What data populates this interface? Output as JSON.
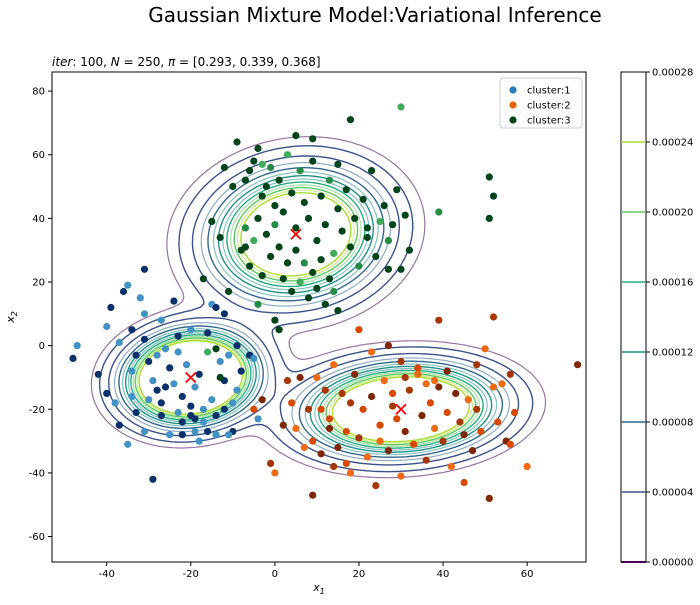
{
  "figure": {
    "suptitle": "Gaussian Mixture Model:Variational Inference"
  },
  "chart_data": {
    "type": "scatter",
    "title": "iter: 100, N = 250, π = [0.293, 0.339, 0.368]",
    "title_parts": {
      "iter_label": "iter",
      "iter_value": "100",
      "n_label": "N",
      "n_value": "250",
      "pi_label": "π",
      "pi_value": "[0.293, 0.339, 0.368]"
    },
    "xlabel_sym": "x",
    "xlabel_sub": "1",
    "ylabel_sym": "x",
    "ylabel_sub": "2",
    "xlim": [
      -53,
      74
    ],
    "ylim": [
      -68,
      86
    ],
    "xticks": [
      -40,
      -20,
      0,
      20,
      40,
      60
    ],
    "yticks": [
      -60,
      -40,
      -20,
      0,
      20,
      40,
      60,
      80
    ],
    "grid": false,
    "legend_position": "top-right",
    "legend": [
      {
        "label": "cluster:1",
        "color": "#2b7bba"
      },
      {
        "label": "cluster:2",
        "color": "#e66101"
      },
      {
        "label": "cluster:3",
        "color": "#00441b"
      }
    ],
    "centers": [
      {
        "x": -20,
        "y": -10
      },
      {
        "x": 5,
        "y": 35
      },
      {
        "x": 30,
        "y": -20
      }
    ],
    "components": [
      {
        "mean": [
          -20,
          -10
        ],
        "sx": 8,
        "sy": 7.5,
        "rho": 0.1,
        "weight": 0.293
      },
      {
        "mean": [
          5,
          35
        ],
        "sx": 11,
        "sy": 11,
        "rho": 0.1,
        "weight": 0.368
      },
      {
        "mean": [
          30,
          -20
        ],
        "sx": 12,
        "sy": 7.5,
        "rho": 0.1,
        "weight": 0.339
      }
    ],
    "colorbar": {
      "ticks": [
        "0.00000",
        "0.00004",
        "0.00008",
        "0.00012",
        "0.00016",
        "0.00020",
        "0.00024",
        "0.00028"
      ],
      "tick_values": [
        0,
        4e-05,
        8e-05,
        0.00012,
        0.00016,
        0.0002,
        0.00024,
        0.00028
      ],
      "range": [
        0,
        0.00028
      ],
      "level_colors": [
        "#440154",
        "#3b528b",
        "#31688e",
        "#21918c",
        "#27ad81",
        "#5ec962",
        "#aadc32",
        "#fde725"
      ]
    },
    "series": [
      {
        "name": "cluster:1",
        "points": [
          [
            -48,
            -4
          ],
          [
            -47,
            0
          ],
          [
            -42,
            -9
          ],
          [
            -40,
            6
          ],
          [
            -39,
            12
          ],
          [
            -37,
            1
          ],
          [
            -36,
            17
          ],
          [
            -35,
            19
          ],
          [
            -34,
            5
          ],
          [
            -34,
            -8
          ],
          [
            -33,
            -3
          ],
          [
            -32,
            15
          ],
          [
            -31,
            24
          ],
          [
            -31,
            10
          ],
          [
            -30,
            -5
          ],
          [
            -29,
            -11
          ],
          [
            -28,
            -14
          ],
          [
            -26,
            -1
          ],
          [
            -25,
            -7
          ],
          [
            -24,
            -12
          ],
          [
            -23,
            3
          ],
          [
            -23,
            -2
          ],
          [
            -22,
            -16
          ],
          [
            -21,
            -6
          ],
          [
            -20,
            -19
          ],
          [
            -19,
            -13
          ],
          [
            -18,
            -9
          ],
          [
            -17,
            -24
          ],
          [
            -16,
            4
          ],
          [
            -15,
            -17
          ],
          [
            -14,
            -22
          ],
          [
            -13,
            -5
          ],
          [
            -12,
            -11
          ],
          [
            -11,
            -3
          ],
          [
            -10,
            -27
          ],
          [
            -9,
            -14
          ],
          [
            -33,
            -21
          ],
          [
            -35,
            -31
          ],
          [
            -37,
            -25
          ],
          [
            -31,
            -27
          ],
          [
            -27,
            -22
          ],
          [
            -25,
            -28
          ],
          [
            -22,
            -28
          ],
          [
            -19,
            -27
          ],
          [
            -16,
            -27
          ],
          [
            -14,
            -28
          ],
          [
            -27,
            -18
          ],
          [
            -30,
            -17
          ],
          [
            -24,
            14
          ],
          [
            -27,
            8
          ],
          [
            -22,
            -24
          ],
          [
            -18,
            -30
          ],
          [
            -12,
            -20
          ],
          [
            -17,
            -20
          ],
          [
            -29,
            -42
          ],
          [
            -34,
            -16
          ],
          [
            -12,
            10
          ],
          [
            -15,
            13
          ],
          [
            -14,
            12
          ],
          [
            -11,
            -28
          ],
          [
            -6,
            -3
          ],
          [
            -5,
            -4
          ],
          [
            -8,
            -8
          ],
          [
            -4,
            -23
          ],
          [
            -19,
            -23
          ],
          [
            -23,
            -21
          ],
          [
            -26,
            -13
          ],
          [
            -28,
            -3
          ],
          [
            -31,
            2
          ],
          [
            -38,
            -18
          ],
          [
            -40,
            -15
          ],
          [
            -20,
            5
          ],
          [
            -9,
            0
          ],
          [
            -10,
            -18
          ],
          [
            -20,
            -22
          ]
        ],
        "colors": "mixed"
      },
      {
        "name": "cluster:2",
        "points": [
          [
            -3,
            -17
          ],
          [
            -1,
            -37
          ],
          [
            -5,
            -20
          ],
          [
            0,
            -40
          ],
          [
            2,
            -25
          ],
          [
            3,
            -11
          ],
          [
            4,
            -18
          ],
          [
            5,
            -26
          ],
          [
            6,
            -10
          ],
          [
            8,
            -20
          ],
          [
            9,
            -30
          ],
          [
            10,
            -10
          ],
          [
            11,
            -34
          ],
          [
            12,
            -14
          ],
          [
            13,
            -23
          ],
          [
            14,
            -6
          ],
          [
            15,
            -32
          ],
          [
            16,
            -15
          ],
          [
            17,
            -27
          ],
          [
            18,
            -40
          ],
          [
            19,
            -9
          ],
          [
            20,
            -29
          ],
          [
            21,
            -20
          ],
          [
            22,
            -35
          ],
          [
            23,
            -16
          ],
          [
            24,
            -44
          ],
          [
            25,
            -25
          ],
          [
            26,
            -11
          ],
          [
            27,
            -33
          ],
          [
            28,
            -19
          ],
          [
            29,
            -23
          ],
          [
            30,
            -41
          ],
          [
            31,
            -27
          ],
          [
            32,
            -14
          ],
          [
            33,
            -31
          ],
          [
            34,
            -9
          ],
          [
            35,
            -22
          ],
          [
            36,
            -36
          ],
          [
            37,
            -18
          ],
          [
            38,
            -26
          ],
          [
            39,
            -13
          ],
          [
            40,
            -30
          ],
          [
            41,
            -21
          ],
          [
            42,
            -38
          ],
          [
            43,
            -15
          ],
          [
            44,
            -24
          ],
          [
            45,
            -43
          ],
          [
            46,
            -17
          ],
          [
            47,
            -33
          ],
          [
            48,
            -6
          ],
          [
            49,
            -27
          ],
          [
            50,
            -1
          ],
          [
            51,
            -48
          ],
          [
            52,
            9
          ],
          [
            53,
            -24
          ],
          [
            54,
            -12
          ],
          [
            55,
            -30
          ],
          [
            56,
            -9
          ],
          [
            57,
            -21
          ],
          [
            60,
            -38
          ],
          [
            72,
            -6
          ],
          [
            39,
            8
          ],
          [
            20,
            5
          ],
          [
            23,
            -2
          ],
          [
            27,
            0
          ],
          [
            30,
            -5
          ],
          [
            34,
            -7
          ],
          [
            36,
            -12
          ],
          [
            9,
            -47
          ],
          [
            14,
            -38
          ],
          [
            17,
            -37
          ],
          [
            38,
            -11
          ],
          [
            41,
            -8
          ],
          [
            31,
            -10
          ],
          [
            28,
            -15
          ],
          [
            25,
            -30
          ],
          [
            45,
            -28
          ],
          [
            48,
            -20
          ],
          [
            56,
            -31
          ],
          [
            52,
            -13
          ],
          [
            13,
            -26
          ],
          [
            18,
            -18
          ],
          [
            11,
            -20
          ],
          [
            7,
            -32
          ]
        ],
        "colors": "mixed"
      },
      {
        "name": "cluster:3",
        "points": [
          [
            -7,
            52
          ],
          [
            -6,
            55
          ],
          [
            -5,
            58
          ],
          [
            -4,
            62
          ],
          [
            -3,
            47
          ],
          [
            -2,
            50
          ],
          [
            -1,
            56
          ],
          [
            0,
            44
          ],
          [
            1,
            52
          ],
          [
            2,
            42
          ],
          [
            3,
            60
          ],
          [
            4,
            48
          ],
          [
            5,
            37
          ],
          [
            6,
            55
          ],
          [
            7,
            45
          ],
          [
            8,
            40
          ],
          [
            9,
            58
          ],
          [
            10,
            33
          ],
          [
            11,
            47
          ],
          [
            12,
            38
          ],
          [
            13,
            52
          ],
          [
            14,
            29
          ],
          [
            15,
            43
          ],
          [
            16,
            36
          ],
          [
            17,
            49
          ],
          [
            18,
            31
          ],
          [
            19,
            40
          ],
          [
            20,
            25
          ],
          [
            21,
            46
          ],
          [
            22,
            34
          ],
          [
            23,
            55
          ],
          [
            24,
            28
          ],
          [
            25,
            39
          ],
          [
            26,
            44
          ],
          [
            27,
            33
          ],
          [
            28,
            38
          ],
          [
            29,
            49
          ],
          [
            30,
            24
          ],
          [
            31,
            41
          ],
          [
            32,
            30
          ],
          [
            -8,
            30
          ],
          [
            -7,
            37
          ],
          [
            -6,
            25
          ],
          [
            -5,
            33
          ],
          [
            -4,
            40
          ],
          [
            -3,
            22
          ],
          [
            -2,
            35
          ],
          [
            -1,
            28
          ],
          [
            0,
            38
          ],
          [
            1,
            31
          ],
          [
            2,
            21
          ],
          [
            3,
            26
          ],
          [
            4,
            17
          ],
          [
            5,
            30
          ],
          [
            6,
            20
          ],
          [
            7,
            26
          ],
          [
            8,
            15
          ],
          [
            9,
            23
          ],
          [
            10,
            18
          ],
          [
            11,
            27
          ],
          [
            12,
            13
          ],
          [
            13,
            21
          ],
          [
            14,
            17
          ],
          [
            15,
            11
          ],
          [
            18,
            71
          ],
          [
            30,
            75
          ],
          [
            51,
            53
          ],
          [
            52,
            47
          ],
          [
            51,
            40
          ],
          [
            39,
            42
          ],
          [
            9,
            65
          ],
          [
            5,
            66
          ],
          [
            -9,
            64
          ],
          [
            -12,
            56
          ],
          [
            -10,
            50
          ],
          [
            -7,
            31
          ],
          [
            -3,
            57
          ],
          [
            15,
            57
          ],
          [
            22,
            37
          ],
          [
            27,
            24
          ],
          [
            -13,
            34
          ],
          [
            -15,
            39
          ],
          [
            -11,
            17
          ],
          [
            -4,
            13
          ],
          [
            0,
            8
          ],
          [
            1,
            5
          ],
          [
            -17,
            21
          ],
          [
            -16,
            -2
          ],
          [
            -14,
            -1
          ],
          [
            -13,
            -10
          ]
        ],
        "colors": "mixed"
      }
    ]
  }
}
